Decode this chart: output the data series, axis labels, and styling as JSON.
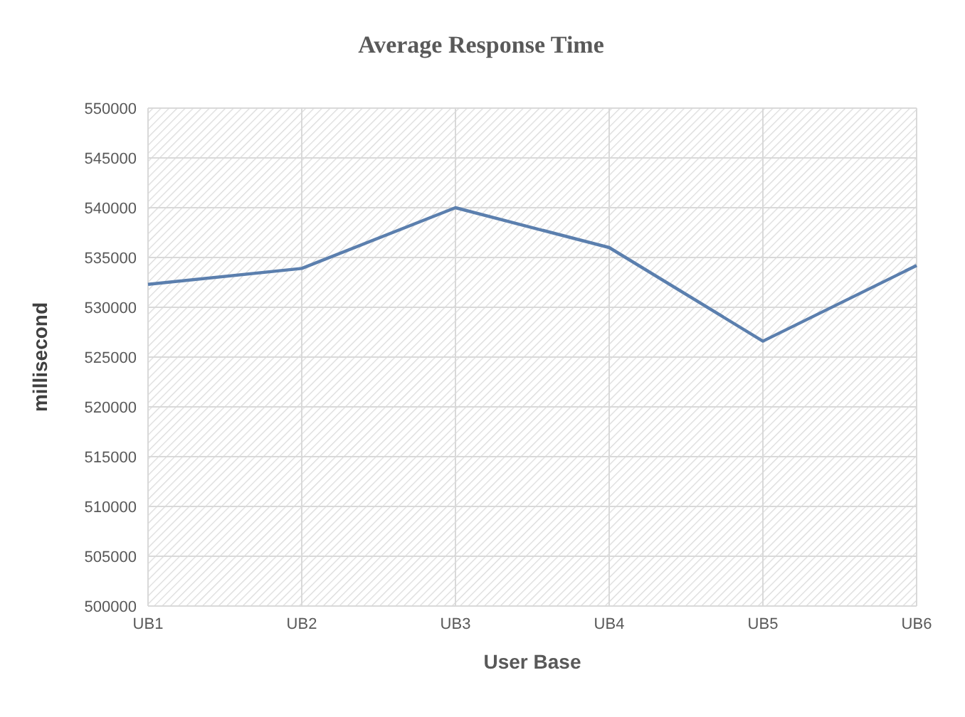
{
  "chart_data": {
    "type": "line",
    "title": "Average Response Time",
    "xlabel": "User Base",
    "ylabel": "millisecond",
    "categories": [
      "UB1",
      "UB2",
      "UB3",
      "UB4",
      "UB5",
      "UB6"
    ],
    "series": [
      {
        "color": "#5b7fae",
        "values": [
          532300,
          533900,
          540000,
          536000,
          526600,
          534200
        ]
      }
    ],
    "ylim": [
      500000,
      550000
    ],
    "yticks": [
      500000,
      505000,
      510000,
      515000,
      520000,
      525000,
      530000,
      535000,
      540000,
      545000,
      550000
    ],
    "grid": true,
    "legend": false,
    "marker": "none",
    "line_style": "solid"
  }
}
